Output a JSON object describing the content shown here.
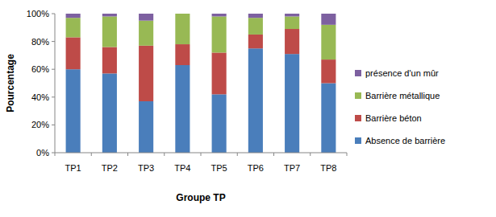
{
  "chart_data": {
    "type": "bar",
    "stacked": true,
    "grid": false,
    "legend": "right",
    "x_label": "Groupe TP",
    "y_label": "Pourcentage",
    "categories": [
      "TP1",
      "TP2",
      "TP3",
      "TP4",
      "TP5",
      "TP6",
      "TP7",
      "TP8"
    ],
    "ylim": [
      0,
      100
    ],
    "yticks": [
      {
        "value": 0,
        "label": "0%"
      },
      {
        "value": 20,
        "label": "20%"
      },
      {
        "value": 40,
        "label": "40%"
      },
      {
        "value": 60,
        "label": "60%"
      },
      {
        "value": 80,
        "label": "80%"
      },
      {
        "value": 100,
        "label": "100%"
      }
    ],
    "series": [
      {
        "name": "Absence de barrière",
        "color": "#4a7ebb",
        "values": [
          60,
          57,
          37,
          63,
          42,
          75,
          71,
          50
        ]
      },
      {
        "name": "Barrière béton",
        "color": "#be4b48",
        "values": [
          23,
          19,
          40,
          15,
          30,
          10,
          18,
          17
        ]
      },
      {
        "name": "Barrière métallique",
        "color": "#98b954",
        "values": [
          14,
          22,
          18,
          22,
          26,
          12,
          9,
          25
        ]
      },
      {
        "name": "présence d'un mûr",
        "color": "#7d60a0",
        "values": [
          3,
          2,
          5,
          0,
          2,
          3,
          2,
          8
        ]
      }
    ]
  }
}
